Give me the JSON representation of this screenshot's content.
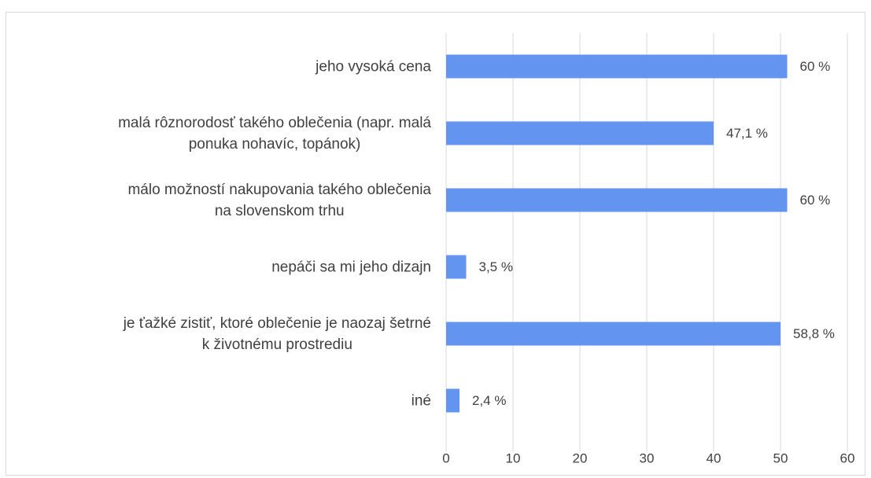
{
  "chart_data": {
    "type": "bar",
    "orientation": "horizontal",
    "categories": [
      "jeho vysoká cena",
      "malá rôznorodosť takého oblečenia (napr. malá\nponuka nohavíc, topánok)",
      "málo možností nakupovania takého oblečenia\nna slovenskom trhu",
      "nepáči sa mi jeho dizajn",
      "je ťažké zistiť, ktoré oblečenie je naozaj šetrné\nk životnému prostrediu",
      "iné"
    ],
    "values": [
      51,
      40,
      51,
      3,
      50,
      2
    ],
    "value_labels": [
      "60 %",
      "47,1 %",
      "60 %",
      "3,5 %",
      "58,8 %",
      "2,4 %"
    ],
    "color": "#6394f0",
    "xlim": [
      0,
      60
    ],
    "xticks": [
      0,
      10,
      20,
      30,
      40,
      50,
      60
    ],
    "grid": true
  }
}
